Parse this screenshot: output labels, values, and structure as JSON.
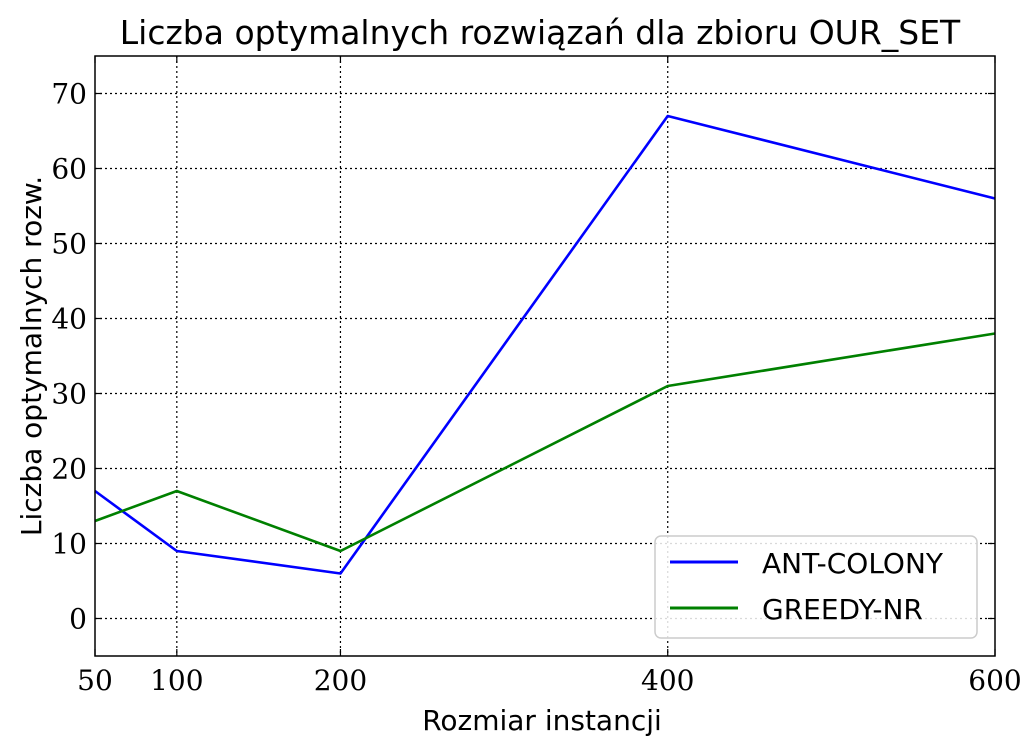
{
  "chart_data": {
    "type": "line",
    "title": "Liczba optymalnych rozwiązań dla zbioru OUR_SET",
    "xlabel": "Rozmiar instancji",
    "ylabel": "Liczba optymalnych rozw.",
    "x": [
      50,
      100,
      200,
      400,
      600
    ],
    "xticks": [
      50,
      100,
      200,
      400,
      600
    ],
    "yticks": [
      0,
      10,
      20,
      30,
      40,
      50,
      60,
      70
    ],
    "xlim": [
      50,
      600
    ],
    "ylim": [
      -5,
      75
    ],
    "grid": true,
    "legend_position": "bottom-right",
    "series": [
      {
        "name": "ANT-COLONY",
        "color": "#0000ff",
        "values": [
          17,
          9,
          6,
          67,
          56
        ]
      },
      {
        "name": "GREEDY-NR",
        "color": "#008000",
        "values": [
          13,
          17,
          9,
          31,
          38
        ]
      }
    ]
  }
}
